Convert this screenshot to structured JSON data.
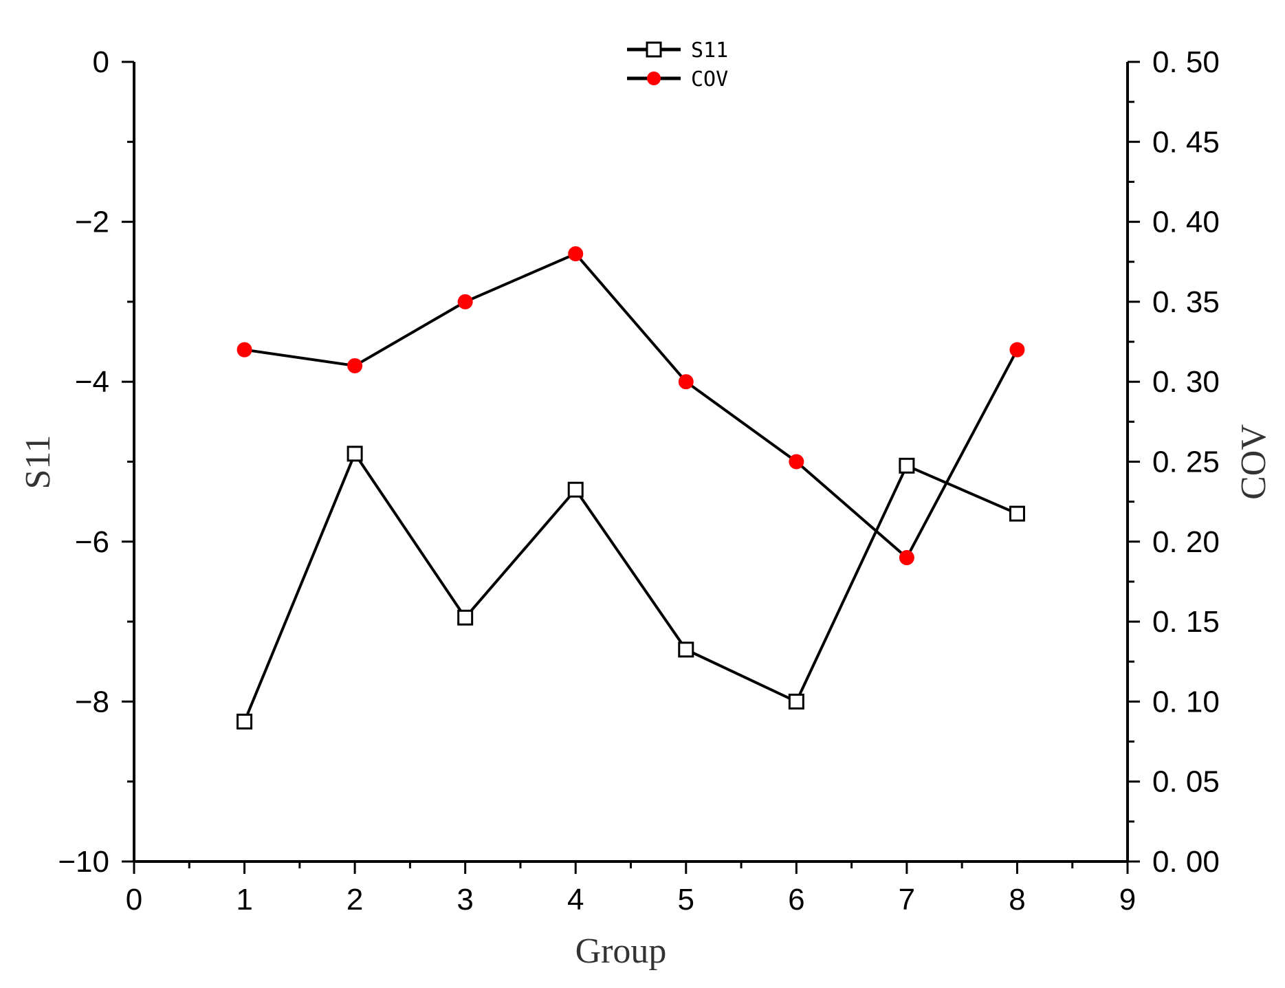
{
  "chart_data": {
    "type": "line",
    "xlabel": "Group",
    "ylabel": "S11",
    "y2label": "COV",
    "xlim": [
      0,
      9
    ],
    "ylim": [
      -10,
      0
    ],
    "y2lim": [
      0,
      0.5
    ],
    "x_ticks": [
      "0",
      "1",
      "2",
      "3",
      "4",
      "5",
      "6",
      "7",
      "8",
      "9"
    ],
    "y_ticks": [
      "0",
      "−2",
      "−4",
      "−6",
      "−8",
      "−10"
    ],
    "y2_ticks": [
      "0. 50",
      "0. 45",
      "0. 40",
      "0. 35",
      "0. 30",
      "0. 25",
      "0. 20",
      "0. 15",
      "0. 10",
      "0. 05",
      "0. 00"
    ],
    "legend_position": "top-center",
    "grid": false,
    "series": [
      {
        "name": "S11",
        "axis": "left",
        "marker": "open-square",
        "color": "#000000",
        "x": [
          1,
          2,
          3,
          4,
          5,
          6,
          7,
          8
        ],
        "values": [
          -8.25,
          -4.9,
          -6.95,
          -5.35,
          -7.35,
          -8.0,
          -5.05,
          -5.65
        ]
      },
      {
        "name": "COV",
        "axis": "right",
        "marker": "filled-circle",
        "color": "#000000",
        "marker_color": "#ff0000",
        "x": [
          1,
          2,
          3,
          4,
          5,
          6,
          7,
          8
        ],
        "values": [
          0.32,
          0.31,
          0.35,
          0.38,
          0.3,
          0.25,
          0.19,
          0.32
        ]
      }
    ]
  }
}
